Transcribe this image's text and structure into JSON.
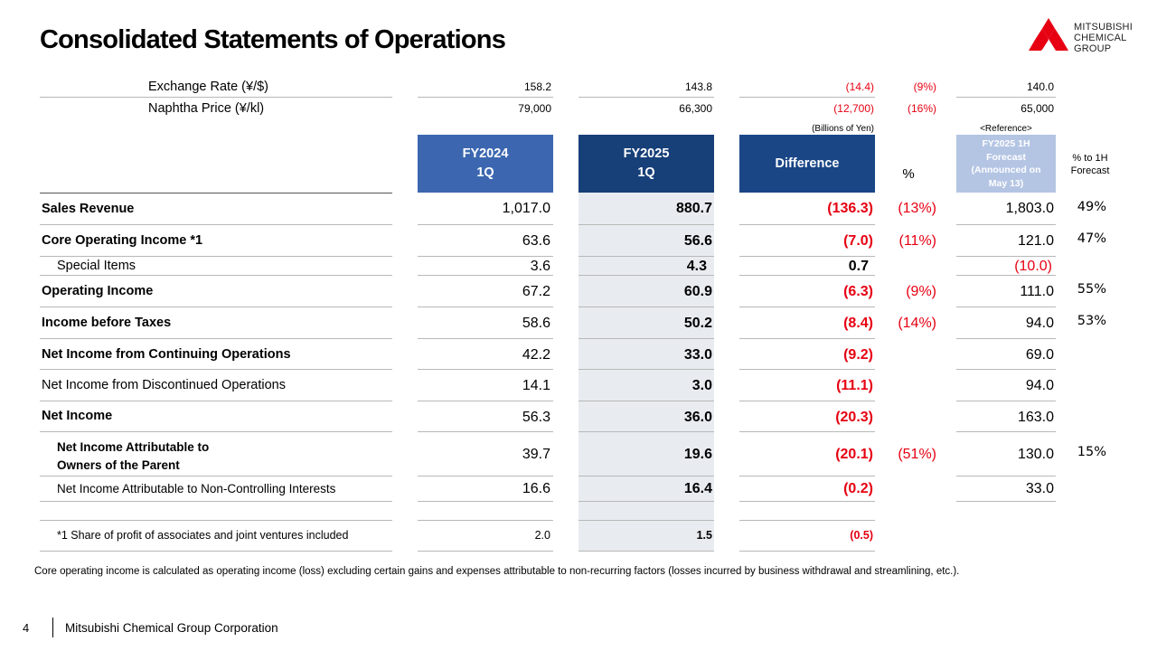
{
  "page": {
    "title": "Consolidated Statements of Operations",
    "footnote": "Core operating income is calculated as operating income (loss) excluding certain gains and expenses attributable to non-recurring factors (losses incurred by business withdrawal and streamlining, etc.).",
    "page_number": "4",
    "company": "Mitsubishi Chemical Group Corporation"
  },
  "logo": {
    "line1": "MITSUBISHI",
    "line2": "CHEMICAL",
    "line3": "GROUP",
    "brand_color": "#e60012"
  },
  "colors": {
    "header_fy2024": "#3c67b0",
    "header_fy2025": "#173f78",
    "header_diff": "#1a4686",
    "header_forecast": "#b4c5e4",
    "negative": "#e60012",
    "fy2025_column_bg": "#e8ecf0"
  },
  "exchange": {
    "label": "Exchange Rate (¥/$)",
    "fy2024": "158.2",
    "fy2025": "143.8",
    "diff": "(14.4)",
    "pct": "(9%)",
    "forecast": "140.0"
  },
  "naphtha": {
    "label": "Naphtha Price  (¥/kl)",
    "fy2024": "79,000",
    "fy2025": "66,300",
    "diff": "(12,700)",
    "pct": "(16%)",
    "forecast": "65,000"
  },
  "header": {
    "units": "(Billions of Yen)",
    "reference": "<Reference>",
    "fy2024_line1": "FY2024",
    "fy2024_line2": "1Q",
    "fy2025_line1": "FY2025",
    "fy2025_line2": "1Q",
    "difference": "Difference",
    "percent": "%",
    "forecast_line1": "FY2025 1H",
    "forecast_line2": "Forecast",
    "forecast_line3": "(Announced on",
    "forecast_line4": "May 13)",
    "pct_forecast_line1": "% to 1H",
    "pct_forecast_line2": "Forecast"
  },
  "rows": [
    {
      "label": "Sales Revenue",
      "fy2024": "1,017.0",
      "fy2025": "880.7",
      "diff": "(136.3)",
      "pct": "(13%)",
      "forecast": "1,803.0",
      "pct_forecast": "49%"
    },
    {
      "label": "Core Operating Income *1",
      "fy2024": "63.6",
      "fy2025": "56.6",
      "diff": "(7.0)",
      "pct": "(11%)",
      "forecast": "121.0",
      "pct_forecast": "47%"
    },
    {
      "label": "Special Items",
      "fy2024": "3.6",
      "fy2025": "4.3",
      "diff": "0.7",
      "pct": "",
      "forecast": "(10.0)",
      "pct_forecast": ""
    },
    {
      "label": "Operating Income",
      "fy2024": "67.2",
      "fy2025": "60.9",
      "diff": "(6.3)",
      "pct": "(9%)",
      "forecast": "111.0",
      "pct_forecast": "55%"
    },
    {
      "label": "Income before Taxes",
      "fy2024": "58.6",
      "fy2025": "50.2",
      "diff": "(8.4)",
      "pct": "(14%)",
      "forecast": "94.0",
      "pct_forecast": "53%"
    },
    {
      "label": "Net Income from Continuing Operations",
      "fy2024": "42.2",
      "fy2025": "33.0",
      "diff": "(9.2)",
      "pct": "",
      "forecast": "69.0",
      "pct_forecast": ""
    },
    {
      "label": "Net Income from Discontinued Operations",
      "fy2024": "14.1",
      "fy2025": "3.0",
      "diff": "(11.1)",
      "pct": "",
      "forecast": "94.0",
      "pct_forecast": ""
    },
    {
      "label": "Net Income",
      "fy2024": "56.3",
      "fy2025": "36.0",
      "diff": "(20.3)",
      "pct": "",
      "forecast": "163.0",
      "pct_forecast": ""
    },
    {
      "label_line1": "Net Income Attributable to",
      "label_line2": "Owners of the Parent",
      "fy2024": "39.7",
      "fy2025": "19.6",
      "diff": "(20.1)",
      "pct": "(51%)",
      "forecast": "130.0",
      "pct_forecast": "15%"
    },
    {
      "label": "Net Income Attributable to Non-Controlling Interests",
      "fy2024": "16.6",
      "fy2025": "16.4",
      "diff": "(0.2)",
      "pct": "",
      "forecast": "33.0",
      "pct_forecast": ""
    }
  ],
  "associates": {
    "label": "*1 Share of profit of associates and joint ventures included",
    "fy2024": "2.0",
    "fy2025": "1.5",
    "diff": "(0.5)"
  }
}
